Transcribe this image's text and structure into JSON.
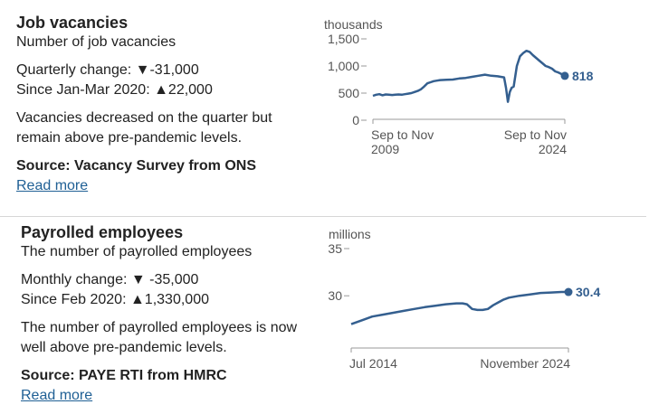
{
  "panels": [
    {
      "title": "Job vacancies",
      "subtitle": "Number of job vacancies",
      "change_label": "Quarterly change: ",
      "change_value": "▼-31,000",
      "since_label": "Since Jan-Mar 2020: ",
      "since_value": "▲22,000",
      "description": "Vacancies decreased on the quarter but remain above pre-pandemic levels.",
      "source": "Source: Vacancy Survey from ONS",
      "read_more": "Read more"
    },
    {
      "title": "Payrolled employees",
      "subtitle": "The number of payrolled employees",
      "change_label": "Monthly change: ",
      "change_value": "▼ -35,000",
      "since_label": "Since Feb 2020: ",
      "since_value": "▲1,330,000",
      "description": "The number of payrolled employees is now well above pre-pandemic levels.",
      "source": "Source: PAYE RTI from HMRC",
      "read_more": "Read more"
    }
  ],
  "colors": {
    "line": "#345f8f",
    "axis": "#999999",
    "label": "#555555",
    "link": "#206095"
  },
  "chart_data": [
    {
      "type": "line",
      "unit": "thousands",
      "ylim": [
        0,
        1500
      ],
      "yticks": [
        0,
        500,
        1000,
        1500
      ],
      "ytick_labels": [
        "0",
        "500",
        "1,000",
        "1,500"
      ],
      "grid": false,
      "xtick_labels": [
        [
          "Sep to Nov",
          "2009"
        ],
        [
          "Sep to Nov",
          "2024"
        ]
      ],
      "last_label": "818",
      "series": [
        {
          "x": [
            2009.75,
            2010.0,
            2010.25,
            2010.5,
            2010.75,
            2011.0,
            2011.25,
            2011.5,
            2011.75,
            2012.0,
            2012.25,
            2012.5,
            2012.75,
            2013.0,
            2013.25,
            2013.5,
            2013.75,
            2014.0,
            2014.25,
            2014.5,
            2014.75,
            2015.0,
            2015.5,
            2016.0,
            2016.5,
            2017.0,
            2017.5,
            2018.0,
            2018.5,
            2019.0,
            2019.5,
            2019.75,
            2020.0,
            2020.15,
            2020.3,
            2020.45,
            2020.6,
            2020.75,
            2021.0,
            2021.25,
            2021.5,
            2021.75,
            2022.0,
            2022.25,
            2022.5,
            2022.75,
            2023.0,
            2023.25,
            2023.5,
            2023.75,
            2024.0,
            2024.25,
            2024.5,
            2024.75
          ],
          "y": [
            450,
            470,
            480,
            460,
            475,
            470,
            465,
            470,
            475,
            470,
            480,
            490,
            500,
            520,
            540,
            570,
            620,
            680,
            700,
            720,
            730,
            740,
            745,
            750,
            770,
            780,
            800,
            820,
            840,
            820,
            810,
            800,
            790,
            600,
            340,
            520,
            600,
            620,
            1000,
            1180,
            1240,
            1280,
            1260,
            1200,
            1150,
            1100,
            1050,
            1000,
            980,
            950,
            900,
            880,
            850,
            818
          ]
        }
      ]
    },
    {
      "type": "line",
      "unit": "millions",
      "ylim": [
        26,
        35
      ],
      "yticks": [
        30,
        35
      ],
      "ytick_labels": [
        "30",
        "35"
      ],
      "grid": false,
      "xtick_labels": [
        "Jul 2014",
        "November 2024"
      ],
      "last_label": "30.4",
      "series": [
        {
          "x": [
            2014.5,
            2015.0,
            2015.5,
            2016.0,
            2016.5,
            2017.0,
            2017.5,
            2018.0,
            2018.5,
            2019.0,
            2019.5,
            2019.8,
            2020.0,
            2020.25,
            2020.5,
            2020.75,
            2021.0,
            2021.25,
            2021.5,
            2021.75,
            2022.0,
            2022.5,
            2023.0,
            2023.5,
            2024.0,
            2024.5,
            2024.83
          ],
          "y": [
            27.0,
            27.4,
            27.8,
            28.0,
            28.2,
            28.4,
            28.6,
            28.8,
            28.95,
            29.1,
            29.2,
            29.2,
            29.1,
            28.6,
            28.5,
            28.5,
            28.6,
            29.0,
            29.3,
            29.6,
            29.8,
            30.0,
            30.15,
            30.3,
            30.35,
            30.4,
            30.4
          ]
        }
      ]
    }
  ]
}
